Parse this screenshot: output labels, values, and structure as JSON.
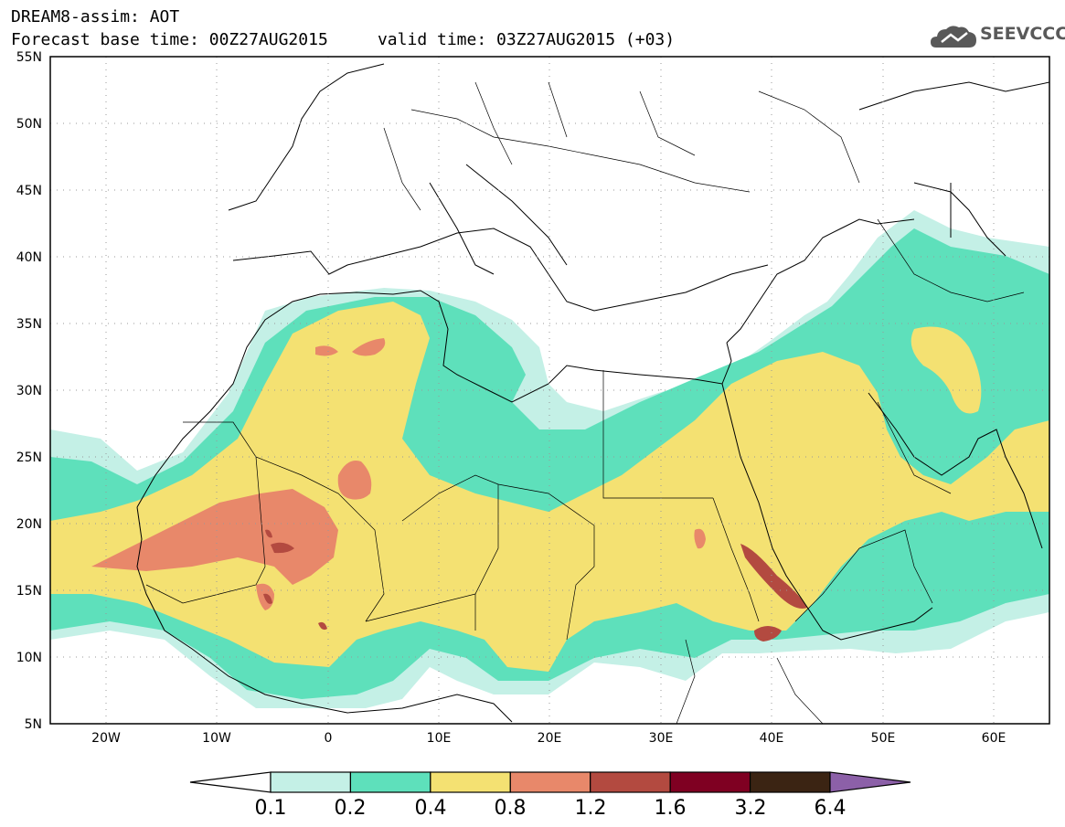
{
  "title": {
    "line1": "DREAM8-assim: AOT",
    "line2": "Forecast base time: 00Z27AUG2015     valid time: 03Z27AUG2015 (+03)"
  },
  "logo": {
    "text": "SEEVCCC",
    "icon": "cloud-icon",
    "color": "#595959"
  },
  "map": {
    "lat_range": [
      5,
      55
    ],
    "lon_range": [
      -25,
      65
    ],
    "lat_ticks": [
      "55N",
      "50N",
      "45N",
      "40N",
      "35N",
      "30N",
      "25N",
      "20N",
      "15N",
      "10N",
      "5N"
    ],
    "lon_ticks": [
      "20W",
      "10W",
      "0",
      "10E",
      "20E",
      "30E",
      "40E",
      "50E",
      "60E"
    ],
    "grid": "dotted"
  },
  "colorbar": {
    "levels": [
      "0.1",
      "0.2",
      "0.4",
      "0.8",
      "1.2",
      "1.6",
      "3.2",
      "6.4"
    ],
    "colors": [
      "#c4f0e6",
      "#5ee0bb",
      "#f4e172",
      "#e8886a",
      "#b34a40",
      "#7f0022",
      "#3b2413",
      "#8c60a8"
    ],
    "extend": "both"
  }
}
